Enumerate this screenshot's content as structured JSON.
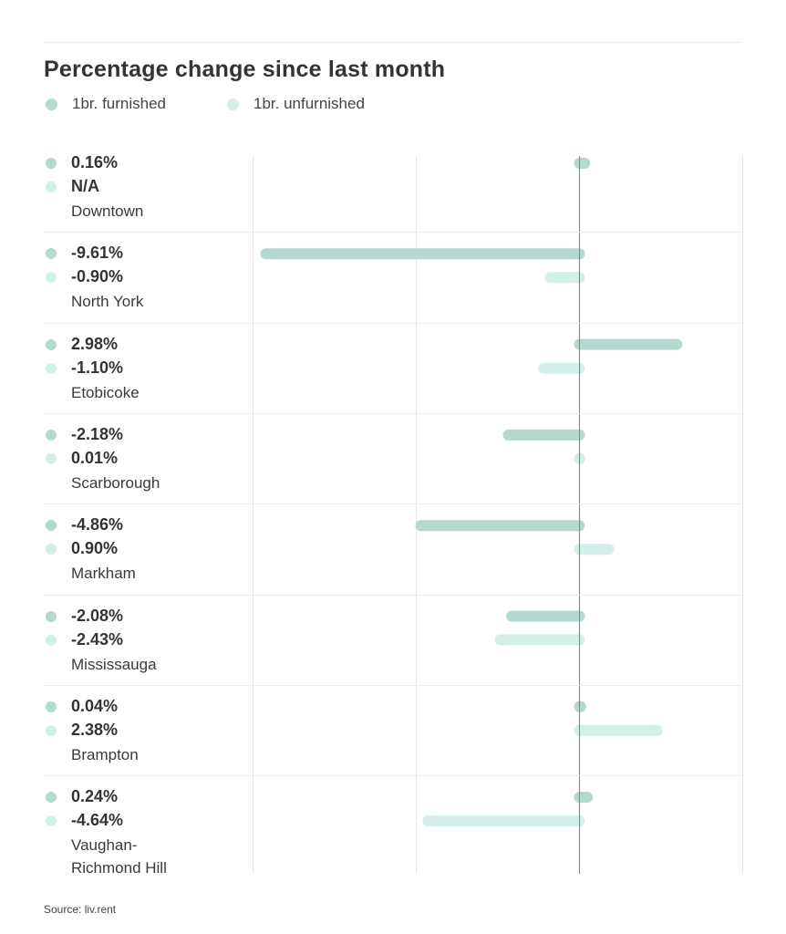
{
  "chart_data": {
    "type": "bar",
    "orientation": "horizontal",
    "title": "Percentage change since last month",
    "xlabel": "",
    "ylabel": "",
    "xlim": [
      -10,
      5
    ],
    "grid": true,
    "zero_line": true,
    "legend": "top-left",
    "source": "Source: liv.rent",
    "colors": {
      "furnished": "#b3d9d0",
      "unfurnished": "#d2efe9",
      "zero_line": "#8c8c8c",
      "grid": "#e6e6e6"
    },
    "series": [
      {
        "name": "1br. furnished",
        "key": "furnished"
      },
      {
        "name": "1br. unfurnished",
        "key": "unfurnished"
      }
    ],
    "categories": [
      {
        "name": "Downtown",
        "furnished": 0.16,
        "furnished_label": "0.16%",
        "unfurnished": null,
        "unfurnished_label": "N/A"
      },
      {
        "name": "North York",
        "furnished": -9.61,
        "furnished_label": "-9.61%",
        "unfurnished": -0.9,
        "unfurnished_label": "-0.90%"
      },
      {
        "name": "Etobicoke",
        "furnished": 2.98,
        "furnished_label": "2.98%",
        "unfurnished": -1.1,
        "unfurnished_label": "-1.10%"
      },
      {
        "name": "Scarborough",
        "furnished": -2.18,
        "furnished_label": "-2.18%",
        "unfurnished": 0.01,
        "unfurnished_label": "0.01%"
      },
      {
        "name": "Markham",
        "furnished": -4.86,
        "furnished_label": "-4.86%",
        "unfurnished": 0.9,
        "unfurnished_label": "0.90%"
      },
      {
        "name": "Mississauga",
        "furnished": -2.08,
        "furnished_label": "-2.08%",
        "unfurnished": -2.43,
        "unfurnished_label": "-2.43%"
      },
      {
        "name": "Brampton",
        "furnished": 0.04,
        "furnished_label": "0.04%",
        "unfurnished": 2.38,
        "unfurnished_label": "2.38%"
      },
      {
        "name": "Vaughan-\nRichmond Hill",
        "furnished": 0.24,
        "furnished_label": "0.24%",
        "unfurnished": -4.64,
        "unfurnished_label": "-4.64%"
      }
    ]
  }
}
